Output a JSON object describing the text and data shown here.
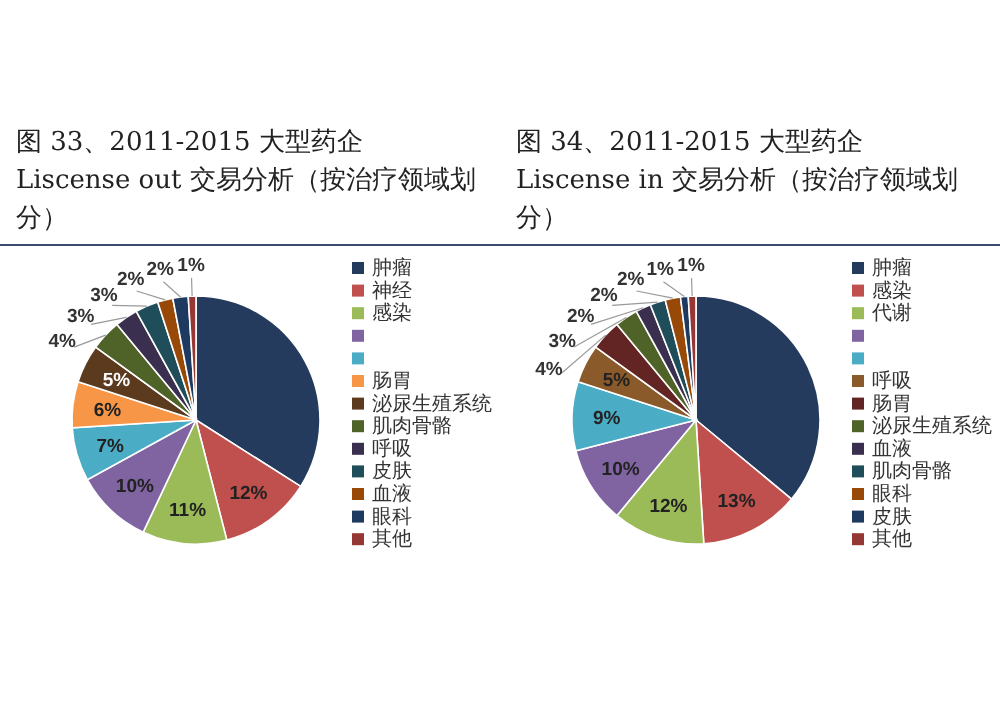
{
  "chart_data": [
    {
      "type": "pie",
      "title": "图 33、2011-2015 大型药企 Liscense out 交易分析（按治疗领域划分）",
      "categories": [
        "肿瘤",
        "神经",
        "感染",
        null,
        null,
        "肠胃",
        "泌尿生殖系统",
        "肌肉骨骼",
        "呼吸",
        "皮肤",
        "血液",
        "眼科",
        "其他"
      ],
      "values": [
        34,
        12,
        11,
        10,
        7,
        6,
        5,
        4,
        3,
        3,
        2,
        2,
        1
      ],
      "value_labels": [
        null,
        "12%",
        "11%",
        "10%",
        "7%",
        "6%",
        "5%",
        "4%",
        "3%",
        "3%",
        "2%",
        "2%",
        "1%"
      ],
      "colors": [
        "#243b5e",
        "#c0504d",
        "#9bbb59",
        "#8064a2",
        "#4bacc6",
        "#f79646",
        "#5b3a1e",
        "#4f6228",
        "#3b2f4f",
        "#1f4e5a",
        "#984807",
        "#1f3a60",
        "#953735"
      ],
      "legend": "right"
    },
    {
      "type": "pie",
      "title": "图 34、2011-2015 大型药企 Liscense in 交易分析（按治疗领域划分）",
      "categories": [
        "肿瘤",
        "感染",
        "代谢",
        null,
        null,
        "呼吸",
        "肠胃",
        "泌尿生殖系统",
        "血液",
        "肌肉骨骼",
        "眼科",
        "皮肤",
        "其他"
      ],
      "values": [
        36,
        13,
        12,
        10,
        9,
        5,
        4,
        3,
        2,
        2,
        2,
        1,
        1
      ],
      "value_labels": [
        null,
        "13%",
        "12%",
        "10%",
        "9%",
        "5%",
        "4%",
        "3%",
        "2%",
        "2%",
        "2%",
        "1%",
        "1%"
      ],
      "colors": [
        "#243b5e",
        "#c0504d",
        "#9bbb59",
        "#8064a2",
        "#4bacc6",
        "#8b5a2b",
        "#632523",
        "#4f6228",
        "#3b2f4f",
        "#1f4e5a",
        "#984807",
        "#1f3a60",
        "#953735"
      ],
      "legend": "right"
    }
  ]
}
